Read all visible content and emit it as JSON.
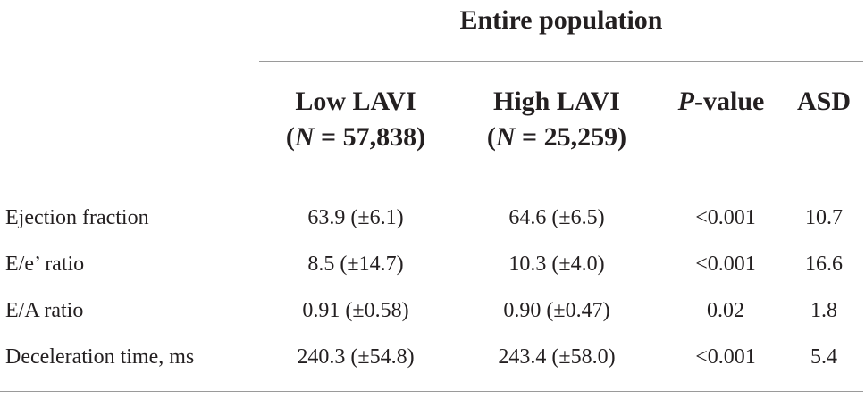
{
  "table": {
    "group_title": "Entire population",
    "columns": {
      "low": {
        "line1": "Low LAVI",
        "open": "(",
        "n_var": "N",
        "n_value": " = 57,838)"
      },
      "high": {
        "line1": "High LAVI",
        "open": "(",
        "n_var": "N",
        "n_value": " = 25,259)"
      },
      "p": {
        "var": "P",
        "rest": "-value"
      },
      "asd": "ASD"
    },
    "rows": [
      {
        "label": "Ejection fraction",
        "low": "63.9 (±6.1)",
        "high": "64.6 (±6.5)",
        "p": "<0.001",
        "asd": "10.7"
      },
      {
        "label": "E/e’ ratio",
        "low": "8.5 (±14.7)",
        "high": "10.3 (±4.0)",
        "p": "<0.001",
        "asd": "16.6"
      },
      {
        "label": "E/A ratio",
        "low": "0.91 (±0.58)",
        "high": "0.90 (±0.47)",
        "p": "0.02",
        "asd": "1.8"
      },
      {
        "label": "Deceleration time, ms",
        "low": "240.3 (±54.8)",
        "high": "243.4 (±58.0)",
        "p": "<0.001",
        "asd": "5.4"
      }
    ]
  }
}
